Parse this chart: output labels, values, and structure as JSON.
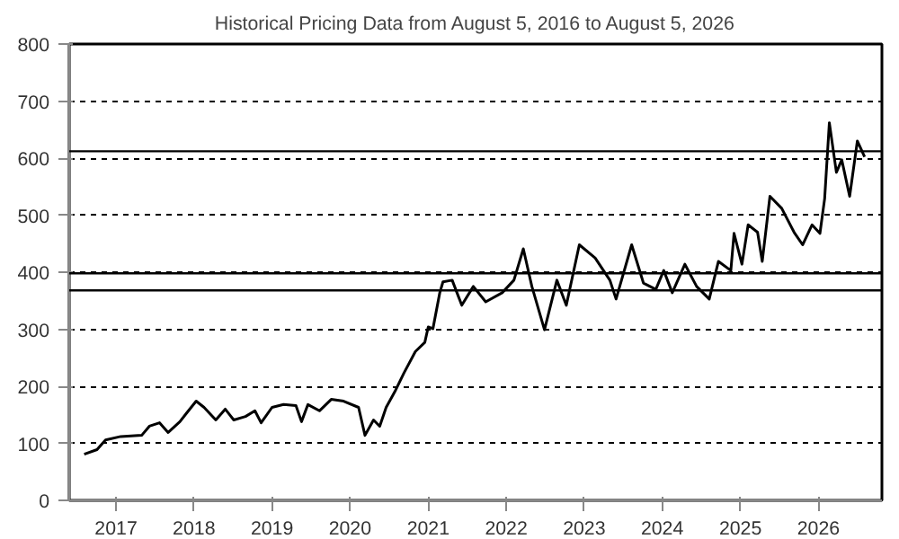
{
  "chart_data": {
    "type": "line",
    "title": "Historical Pricing Data from August 5, 2016 to August 5, 2026",
    "x": [
      "2016-08-05",
      "2016-10-04",
      "2016-11-13",
      "2017-01-23",
      "2017-05-01",
      "2017-06-06",
      "2017-07-24",
      "2017-09-02",
      "2017-10-27",
      "2017-11-25",
      "2018-01-11",
      "2018-02-17",
      "2018-04-13",
      "2018-05-27",
      "2018-07-06",
      "2018-08-30",
      "2018-10-13",
      "2018-11-11",
      "2019-01-01",
      "2019-02-24",
      "2019-04-23",
      "2019-05-19",
      "2019-06-18",
      "2019-08-11",
      "2019-10-05",
      "2019-12-02",
      "2020-02-10",
      "2020-03-11",
      "2020-04-20",
      "2020-05-19",
      "2020-06-18",
      "2020-07-28",
      "2020-09-09",
      "2020-11-02",
      "2020-12-16",
      "2021-01-01",
      "2021-01-23",
      "2021-02-24",
      "2021-03-11",
      "2021-04-23",
      "2021-06-07",
      "2021-07-31",
      "2021-09-27",
      "2021-12-13",
      "2022-02-06",
      "2022-03-22",
      "2022-05-01",
      "2022-06-29",
      "2022-08-26",
      "2022-10-09",
      "2022-12-09",
      "2023-02-21",
      "2023-05-01",
      "2023-05-30",
      "2023-08-11",
      "2023-10-05",
      "2023-12-02",
      "2024-01-08",
      "2024-02-17",
      "2024-04-16",
      "2024-06-10",
      "2024-08-08",
      "2024-09-20",
      "2024-11-17",
      "2024-12-02",
      "2025-01-08",
      "2025-02-06",
      "2025-03-22",
      "2025-04-13",
      "2025-05-19",
      "2025-07-13",
      "2025-09-09",
      "2025-10-19",
      "2025-12-02",
      "2026-01-08",
      "2026-01-30",
      "2026-02-21",
      "2026-03-26",
      "2026-04-20",
      "2026-05-27",
      "2026-07-02",
      "2026-08-05"
    ],
    "series": [
      {
        "color": "#000000",
        "values": [
          81,
          89,
          106,
          112,
          114,
          130,
          136,
          119,
          138,
          152,
          174,
          163,
          141,
          160,
          141,
          147,
          157,
          136,
          163,
          168,
          166,
          138,
          168,
          157,
          177,
          174,
          163,
          114,
          141,
          130,
          163,
          190,
          223,
          261,
          277,
          304,
          301,
          364,
          383,
          386,
          342,
          375,
          348,
          364,
          386,
          441,
          375,
          299,
          386,
          342,
          448,
          425,
          386,
          353,
          448,
          381,
          370,
          403,
          364,
          414,
          375,
          353,
          419,
          403,
          468,
          414,
          483,
          470,
          419,
          533,
          512,
          470,
          448,
          483,
          468,
          529,
          662,
          575,
          597,
          533,
          630,
          602
        ]
      }
    ],
    "xlim": [
      "2016-05-27",
      "2026-10-25"
    ],
    "xticks": [
      {
        "value": "2017-01-01",
        "label": "2017"
      },
      {
        "value": "2018-01-01",
        "label": "2018"
      },
      {
        "value": "2019-01-01",
        "label": "2019"
      },
      {
        "value": "2020-01-01",
        "label": "2020"
      },
      {
        "value": "2021-01-01",
        "label": "2021"
      },
      {
        "value": "2022-01-01",
        "label": "2022"
      },
      {
        "value": "2023-01-01",
        "label": "2023"
      },
      {
        "value": "2024-01-01",
        "label": "2024"
      },
      {
        "value": "2025-01-01",
        "label": "2025"
      },
      {
        "value": "2026-01-01",
        "label": "2026"
      }
    ],
    "ylim": [
      0,
      800
    ],
    "yticks": [
      0,
      100,
      200,
      300,
      400,
      500,
      600,
      700,
      800
    ],
    "ref_lines": [
      {
        "axis": "y",
        "value": 612,
        "color": "#000000",
        "line_style": "solid"
      },
      {
        "axis": "y",
        "value": 398,
        "color": "#000000",
        "line_style": "solid"
      },
      {
        "axis": "y",
        "value": 368,
        "color": "#000000",
        "line_style": "solid"
      }
    ],
    "grid": "y",
    "line_style": "solid"
  }
}
